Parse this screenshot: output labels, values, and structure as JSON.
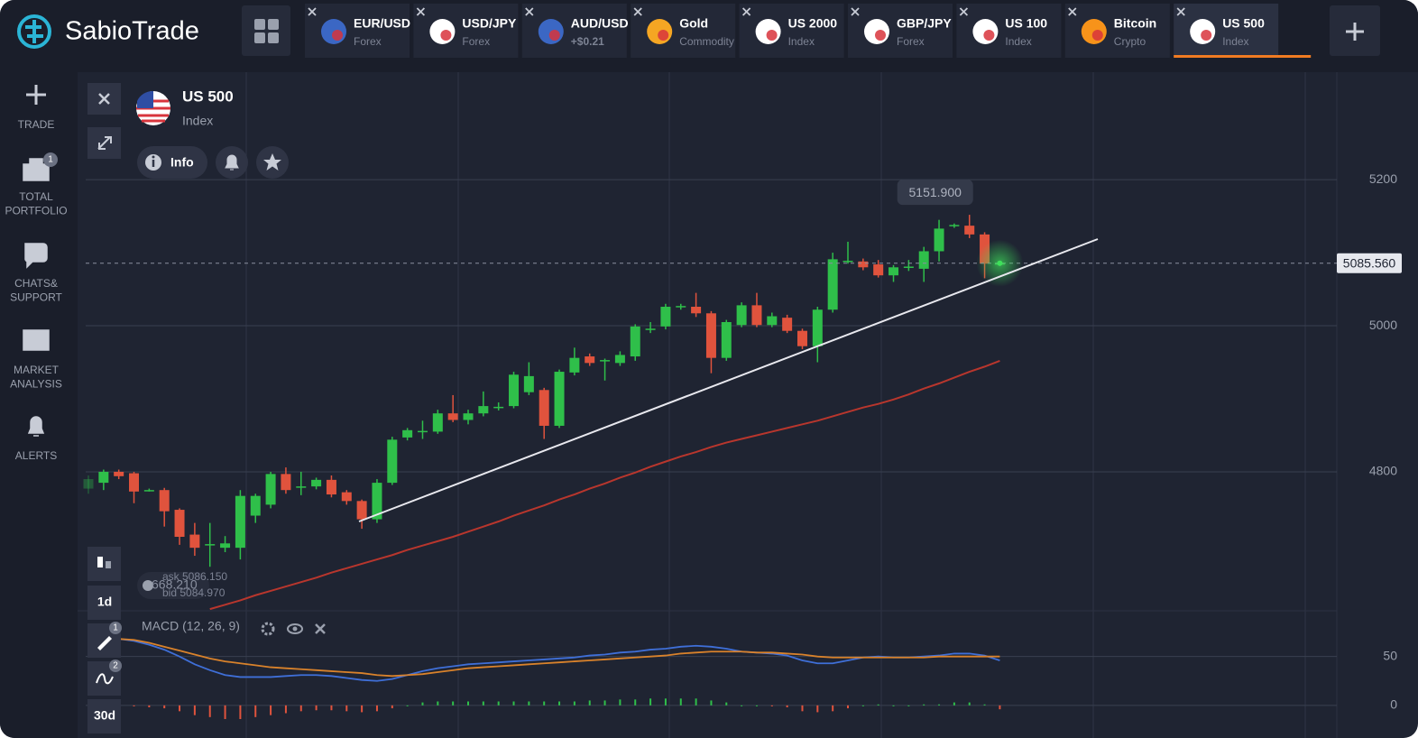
{
  "header": {
    "logo": "SabioTrade",
    "tabs": [
      {
        "name": "EUR/USD",
        "sub": "Forex"
      },
      {
        "name": "USD/JPY",
        "sub": "Forex"
      },
      {
        "name": "AUD/USD",
        "sub": "+$0.21",
        "color": "#3ecf6f"
      },
      {
        "name": "Gold",
        "sub": "Commodity"
      },
      {
        "name": "US 2000",
        "sub": "Index"
      },
      {
        "name": "GBP/JPY",
        "sub": "Forex"
      },
      {
        "name": "US 100",
        "sub": "Index"
      },
      {
        "name": "Bitcoin",
        "sub": "Crypto"
      },
      {
        "name": "US 500",
        "sub": "Index",
        "active": true
      }
    ]
  },
  "sidebar": {
    "items": [
      {
        "lines": [
          "TRADE"
        ]
      },
      {
        "lines": [
          "TOTAL",
          "PORTFOLIO"
        ],
        "badge": "1"
      },
      {
        "lines": [
          "CHATS&",
          "SUPPORT"
        ]
      },
      {
        "lines": [
          "MARKET",
          "ANALYSIS"
        ]
      },
      {
        "lines": [
          "ALERTS"
        ]
      }
    ]
  },
  "asset": {
    "name": "US 500",
    "type": "Index",
    "info": "Info"
  },
  "toolbar": {
    "period": "1d",
    "draw_badge": "1",
    "indicator_badge": "2",
    "range": "30d"
  },
  "quote": {
    "ask": "ask 5086.150",
    "bid": "bid 5084.970",
    "amount": "668.210"
  },
  "chart_data": [
    {
      "type": "candlestick",
      "up_color": "#2fbf4a",
      "down_color": "#e0533d",
      "open": [
        4777,
        4785,
        4800,
        4798,
        4775,
        4775,
        4748,
        4714,
        4700,
        4696,
        4696,
        4740,
        4755,
        4797,
        4779,
        4780,
        4789,
        4772,
        4760,
        4735,
        4785,
        4847,
        4855,
        4855,
        4880,
        4871,
        4880,
        4888,
        4890,
        4909,
        4912,
        4863,
        4936,
        4958,
        4952,
        4949,
        4958,
        4995,
        4999,
        5026,
        5026,
        5017,
        4956,
        5001,
        5028,
        5001,
        5011,
        4993,
        4972,
        5022,
        5088,
        5088,
        5084,
        5069,
        5080,
        5078,
        5102,
        5137,
        5137,
        5125,
        5084
      ],
      "high": [
        4795,
        4803,
        4803,
        4800,
        4777,
        4778,
        4750,
        4730,
        4730,
        4712,
        4775,
        4770,
        4800,
        4806,
        4800,
        4792,
        4795,
        4775,
        4762,
        4790,
        4848,
        4860,
        4870,
        4885,
        4905,
        4885,
        4910,
        4895,
        4937,
        4950,
        4915,
        4940,
        4970,
        4962,
        4955,
        4965,
        5002,
        5005,
        5030,
        5030,
        5045,
        5020,
        5008,
        5032,
        5045,
        5018,
        5015,
        4996,
        5026,
        5100,
        5115,
        5092,
        5090,
        5083,
        5090,
        5108,
        5145,
        5140,
        5151.9,
        5128,
        5088
      ],
      "low": [
        4770,
        4775,
        4790,
        4757,
        4773,
        4725,
        4700,
        4685,
        4670,
        4690,
        4680,
        4730,
        4750,
        4770,
        4768,
        4776,
        4765,
        4755,
        4722,
        4730,
        4782,
        4843,
        4845,
        4852,
        4868,
        4865,
        4876,
        4884,
        4887,
        4905,
        4845,
        4860,
        4932,
        4945,
        4925,
        4945,
        4952,
        4990,
        4995,
        5022,
        5012,
        4935,
        4952,
        4998,
        4998,
        4998,
        4990,
        4968,
        4950,
        5018,
        5085,
        5076,
        5066,
        5060,
        5075,
        5060,
        5088,
        5134,
        5120,
        5065,
        5082
      ],
      "close": [
        4790,
        4800,
        4794,
        4773,
        4775,
        4746,
        4711,
        4696,
        4701,
        4702,
        4767,
        4767,
        4797,
        4775,
        4780,
        4789,
        4769,
        4760,
        4735,
        4785,
        4844,
        4857,
        4856,
        4880,
        4871,
        4880,
        4890,
        4889,
        4933,
        4931,
        4863,
        4937,
        4956,
        4949,
        4953,
        4960,
        4999,
        4996,
        5026,
        5027,
        5017,
        4956,
        5005,
        5028,
        5001,
        5013,
        4993,
        4972,
        5022,
        5091,
        5089,
        5080,
        5069,
        5080,
        5081,
        5102,
        5133,
        5138,
        5125,
        5085,
        5085.56
      ],
      "ma": {
        "color": "#b8362d",
        "values": [
          null,
          null,
          null,
          null,
          null,
          null,
          null,
          null,
          4612,
          4618,
          4624,
          4631,
          4637,
          4643,
          4649,
          4655,
          4662,
          4668,
          4674,
          4680,
          4686,
          4693,
          4699,
          4705,
          4711,
          4718,
          4725,
          4732,
          4740,
          4747,
          4754,
          4762,
          4769,
          4777,
          4784,
          4792,
          4799,
          4807,
          4814,
          4821,
          4827,
          4834,
          4840,
          4845,
          4850,
          4855,
          4860,
          4865,
          4870,
          4876,
          4882,
          4888,
          4893,
          4899,
          4906,
          4914,
          4921,
          4929,
          4937,
          4944,
          4952
        ]
      },
      "ylim": [
        4606,
        5341
      ],
      "yticks": [
        4800,
        5000,
        5200
      ],
      "grid": true,
      "last_price": {
        "value": 5085.56,
        "label": "5085.560"
      },
      "annotations": [
        {
          "x": 58,
          "value": 5151.9,
          "label": "5151.900"
        }
      ]
    },
    {
      "type": "macd",
      "title": "MACD (12, 26, 9)",
      "series": [
        {
          "color": "#3f6fd8",
          "values": [
            null,
            null,
            68,
            66,
            62,
            57,
            50,
            42,
            36,
            31,
            29,
            29,
            29,
            30,
            31,
            31,
            30,
            28,
            26,
            25,
            27,
            31,
            35,
            38,
            40,
            42,
            43,
            44,
            45,
            46,
            47,
            48,
            49,
            51,
            52,
            54,
            55,
            57,
            58,
            60,
            61,
            60,
            58,
            55,
            54,
            53,
            51,
            46,
            43,
            43,
            46,
            49,
            50,
            49,
            49,
            50,
            51,
            53,
            53,
            51,
            46
          ]
        },
        {
          "color": "#d9822b",
          "values": [
            null,
            null,
            68,
            67,
            64,
            60,
            56,
            52,
            48,
            45,
            43,
            41,
            39,
            38,
            37,
            36,
            35,
            34,
            33,
            31,
            30,
            31,
            32,
            34,
            36,
            38,
            39,
            40,
            41,
            42,
            43,
            44,
            45,
            46,
            47,
            48,
            49,
            50,
            51,
            53,
            54,
            55,
            55,
            55,
            54,
            54,
            53,
            52,
            50,
            49,
            49,
            49,
            49,
            49,
            49,
            49,
            50,
            50,
            50,
            50,
            50
          ]
        }
      ],
      "histogram": {
        "up_color": "#2fbf4a",
        "down_color": "#e0533d",
        "values": [
          null,
          null,
          0,
          -1,
          -2,
          -3,
          -6,
          -10,
          -12,
          -14,
          -14,
          -12,
          -10,
          -8,
          -6,
          -5,
          -5,
          -6,
          -7,
          -6,
          -3,
          0,
          3,
          4,
          4,
          4,
          4,
          4,
          4,
          4,
          4,
          4,
          4,
          5,
          5,
          6,
          6,
          7,
          7,
          7,
          7,
          5,
          3,
          0,
          0,
          -1,
          -2,
          -6,
          -7,
          -6,
          -3,
          0,
          1,
          0,
          0,
          1,
          1,
          3,
          3,
          1,
          -4
        ]
      },
      "ylim": [
        -26,
        94
      ],
      "yticks": [
        0,
        50
      ],
      "grid": true
    }
  ]
}
